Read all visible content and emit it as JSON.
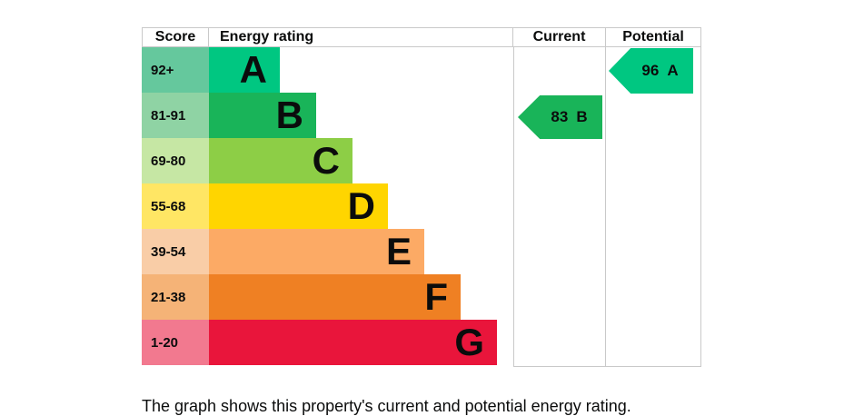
{
  "header": {
    "score": "Score",
    "energy_rating": "Energy rating",
    "current": "Current",
    "potential": "Potential"
  },
  "bands": [
    {
      "band": "A",
      "score_range": "92+",
      "bar_color": "#00c781",
      "score_tint_color": "#65c89d"
    },
    {
      "band": "B",
      "score_range": "81-91",
      "bar_color": "#19b459",
      "score_tint_color": "#8fd3a4"
    },
    {
      "band": "C",
      "score_range": "69-80",
      "bar_color": "#8dce46",
      "score_tint_color": "#c6e7a4"
    },
    {
      "band": "D",
      "score_range": "55-68",
      "bar_color": "#ffd500",
      "score_tint_color": "#ffe664"
    },
    {
      "band": "E",
      "score_range": "39-54",
      "bar_color": "#fcaa65",
      "score_tint_color": "#f9cda7"
    },
    {
      "band": "F",
      "score_range": "21-38",
      "bar_color": "#ef8023",
      "score_tint_color": "#f5b377"
    },
    {
      "band": "G",
      "score_range": "1-20",
      "bar_color": "#e9153b",
      "score_tint_color": "#f2798f"
    }
  ],
  "current_rating": {
    "score": "83",
    "band": "B",
    "arrow_color": "#19b459",
    "row": 1
  },
  "potential_rating": {
    "score": "96",
    "band": "A",
    "arrow_color": "#00c781",
    "row": 0
  },
  "caption": "The graph shows this property's current and potential energy rating.",
  "border_color": "#c9c9c9",
  "chart_data": {
    "type": "bar",
    "orientation": "horizontal",
    "title": "Energy rating",
    "columns": [
      "Score",
      "Energy rating",
      "Current",
      "Potential"
    ],
    "categories": [
      "A",
      "B",
      "C",
      "D",
      "E",
      "F",
      "G"
    ],
    "score_ranges": [
      "92+",
      "81-91",
      "69-80",
      "55-68",
      "39-54",
      "21-38",
      "1-20"
    ],
    "band_colors": [
      "#00c781",
      "#19b459",
      "#8dce46",
      "#ffd500",
      "#fcaa65",
      "#ef8023",
      "#e9153b"
    ],
    "bar_relative_lengths": [
      1,
      2,
      3,
      4,
      5,
      6,
      7
    ],
    "current": {
      "score": 83,
      "band": "B"
    },
    "potential": {
      "score": 96,
      "band": "A"
    },
    "legend": false,
    "grid": false
  }
}
